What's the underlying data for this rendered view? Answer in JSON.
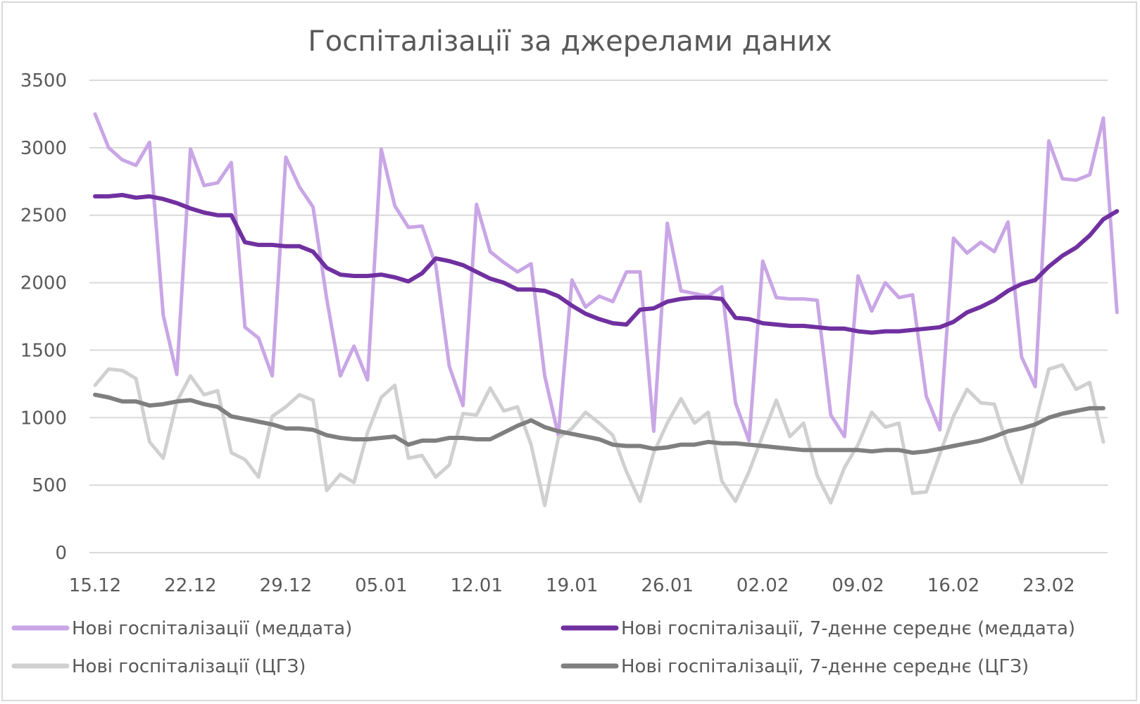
{
  "chart_data": {
    "type": "line",
    "title": "Госпіталізації за джерелами даних",
    "xlabel": "",
    "ylabel": "",
    "ylim": [
      0,
      3500
    ],
    "yticks": [
      0,
      500,
      1000,
      1500,
      2000,
      2500,
      3000,
      3500
    ],
    "grid": true,
    "legend_position": "bottom",
    "xtick_labels": [
      "15.12",
      "22.12",
      "29.12",
      "05.01",
      "12.01",
      "19.01",
      "26.01",
      "02.02",
      "09.02",
      "16.02",
      "23.02"
    ],
    "xtick_step": 7,
    "colors": {
      "lilac": "#c9a6e6",
      "purple": "#7030a0",
      "lightgray": "#d0d0d0",
      "darkgray": "#7f7f7f",
      "grid": "#d9d9d9",
      "text": "#595959"
    },
    "series": [
      {
        "name": "Нові госпіталізації (меддата)",
        "color": "#c9a6e6",
        "values": [
          3250,
          3000,
          2910,
          2870,
          3040,
          1760,
          1320,
          2990,
          2720,
          2740,
          2890,
          1670,
          1590,
          1310,
          2930,
          2710,
          2560,
          1880,
          1310,
          1530,
          1280,
          2990,
          2570,
          2410,
          2420,
          2130,
          1380,
          1090,
          2580,
          2230,
          2150,
          2080,
          2140,
          1310,
          870,
          2020,
          1820,
          1900,
          1860,
          2080,
          2080,
          900,
          2440,
          1940,
          1920,
          1900,
          1970,
          1110,
          830,
          2160,
          1890,
          1880,
          1880,
          1870,
          1020,
          860,
          2050,
          1790,
          2000,
          1890,
          1910,
          1160,
          910,
          2330,
          2220,
          2300,
          2230,
          2450,
          1450,
          1230,
          3050,
          2770,
          2760,
          2800,
          3220,
          1780
        ]
      },
      {
        "name": "Нові госпіталізації, 7-денне середнє (меддата)",
        "color": "#7030a0",
        "values": [
          2640,
          2640,
          2650,
          2630,
          2640,
          2620,
          2590,
          2550,
          2520,
          2500,
          2500,
          2300,
          2280,
          2280,
          2270,
          2270,
          2230,
          2110,
          2060,
          2050,
          2050,
          2060,
          2040,
          2010,
          2070,
          2180,
          2160,
          2130,
          2080,
          2030,
          2000,
          1950,
          1950,
          1940,
          1900,
          1830,
          1770,
          1730,
          1700,
          1690,
          1800,
          1810,
          1860,
          1880,
          1890,
          1890,
          1880,
          1740,
          1730,
          1700,
          1690,
          1680,
          1680,
          1670,
          1660,
          1660,
          1640,
          1630,
          1640,
          1640,
          1650,
          1660,
          1670,
          1710,
          1780,
          1820,
          1870,
          1940,
          1990,
          2020,
          2120,
          2200,
          2260,
          2350,
          2470,
          2530
        ]
      },
      {
        "name": "Нові госпіталізації (ЦГЗ)",
        "color": "#d0d0d0",
        "values": [
          1240,
          1360,
          1350,
          1290,
          820,
          700,
          1120,
          1310,
          1170,
          1200,
          740,
          690,
          560,
          1010,
          1080,
          1170,
          1130,
          460,
          580,
          520,
          890,
          1150,
          1240,
          700,
          720,
          560,
          650,
          1030,
          1020,
          1220,
          1050,
          1080,
          800,
          350,
          850,
          920,
          1040,
          960,
          870,
          600,
          380,
          740,
          960,
          1140,
          960,
          1040,
          530,
          380,
          600,
          870,
          1130,
          860,
          960,
          570,
          370,
          630,
          800,
          1040,
          930,
          960,
          440,
          450,
          730,
          1010,
          1210,
          1110,
          1100,
          780,
          520,
          960,
          1360,
          1390,
          1210,
          1260,
          820
        ]
      },
      {
        "name": "Нові госпіталізації, 7-денне середнє (ЦГЗ)",
        "color": "#7f7f7f",
        "values": [
          1170,
          1150,
          1120,
          1120,
          1090,
          1100,
          1120,
          1130,
          1100,
          1080,
          1010,
          990,
          970,
          950,
          920,
          920,
          910,
          870,
          850,
          840,
          840,
          850,
          860,
          800,
          830,
          830,
          850,
          850,
          840,
          840,
          890,
          940,
          980,
          930,
          900,
          880,
          860,
          840,
          800,
          790,
          790,
          770,
          780,
          800,
          800,
          820,
          810,
          810,
          800,
          790,
          780,
          770,
          760,
          760,
          760,
          760,
          760,
          750,
          760,
          760,
          740,
          750,
          770,
          790,
          810,
          830,
          860,
          900,
          920,
          950,
          1000,
          1030,
          1050,
          1070,
          1070
        ]
      }
    ]
  }
}
